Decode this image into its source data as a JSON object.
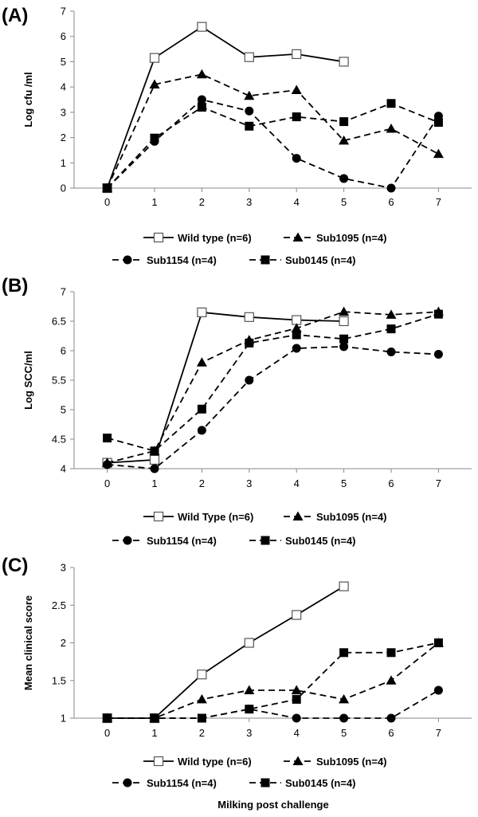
{
  "chart_data": [
    {
      "type": "line",
      "panel_label": "(A)",
      "ylabel": "Log cfu /ml",
      "xlabel": "",
      "x": [
        0,
        1,
        2,
        3,
        4,
        5,
        6,
        7
      ],
      "xlim": [
        -0.7,
        7.7
      ],
      "ylim": [
        0,
        7
      ],
      "yticks": [
        0,
        1,
        2,
        3,
        4,
        5,
        6,
        7
      ],
      "grid": false,
      "legend_position": "bottom",
      "series": [
        {
          "name": "Wild type (n=6)",
          "marker": "open-square",
          "line": "solid",
          "x": [
            0,
            1,
            2,
            3,
            4,
            5
          ],
          "values": [
            0,
            5.15,
            6.38,
            5.18,
            5.3,
            5.0
          ]
        },
        {
          "name": "Sub1095 (n=4)",
          "marker": "triangle",
          "line": "dashed",
          "x": [
            0,
            1,
            2,
            3,
            4,
            5,
            6,
            7
          ],
          "values": [
            0,
            4.1,
            4.5,
            3.65,
            3.88,
            1.88,
            2.35,
            1.35
          ]
        },
        {
          "name": "Sub1154 (n=4)",
          "marker": "circle",
          "line": "dashed",
          "x": [
            0,
            1,
            2,
            3,
            4,
            5,
            6,
            7
          ],
          "values": [
            0,
            1.85,
            3.5,
            3.05,
            1.18,
            0.38,
            0,
            2.85
          ]
        },
        {
          "name": "Sub0145 (n=4)",
          "marker": "square",
          "line": "dashed",
          "x": [
            0,
            1,
            2,
            3,
            4,
            5,
            6,
            7
          ],
          "values": [
            0,
            1.98,
            3.2,
            2.45,
            2.82,
            2.63,
            3.35,
            2.6
          ]
        }
      ]
    },
    {
      "type": "line",
      "panel_label": "(B)",
      "ylabel": "Log  SCC/ml",
      "xlabel": "",
      "x": [
        0,
        1,
        2,
        3,
        4,
        5,
        6,
        7
      ],
      "xlim": [
        -0.7,
        7.7
      ],
      "ylim": [
        4,
        7
      ],
      "yticks": [
        4,
        4.5,
        5,
        5.5,
        6,
        6.5,
        7
      ],
      "grid": false,
      "legend_position": "bottom",
      "series": [
        {
          "name": "Wild Type (n=6)",
          "marker": "open-square",
          "line": "solid",
          "x": [
            0,
            1,
            2,
            3,
            4,
            5
          ],
          "values": [
            4.1,
            4.15,
            6.65,
            6.57,
            6.52,
            6.5
          ]
        },
        {
          "name": "Sub1095 (n=4)",
          "marker": "triangle",
          "line": "dashed",
          "x": [
            0,
            1,
            2,
            3,
            4,
            5,
            6,
            7
          ],
          "values": [
            4.1,
            4.3,
            5.8,
            6.18,
            6.38,
            6.66,
            6.61,
            6.66
          ]
        },
        {
          "name": "Sub1154 (n=4)",
          "marker": "circle",
          "line": "dashed",
          "x": [
            0,
            1,
            2,
            3,
            4,
            5,
            6,
            7
          ],
          "values": [
            4.07,
            4.0,
            4.65,
            5.5,
            6.04,
            6.07,
            5.98,
            5.94
          ]
        },
        {
          "name": "Sub0145 (n=4)",
          "marker": "square",
          "line": "dashed",
          "x": [
            0,
            1,
            2,
            3,
            4,
            5,
            6,
            7
          ],
          "values": [
            4.52,
            4.3,
            5.01,
            6.13,
            6.27,
            6.2,
            6.37,
            6.62
          ]
        }
      ]
    },
    {
      "type": "line",
      "panel_label": "(C)",
      "ylabel": "Mean clinical score",
      "xlabel": "Milking post challenge",
      "x": [
        0,
        1,
        2,
        3,
        4,
        5,
        6,
        7
      ],
      "xlim": [
        -0.7,
        7.7
      ],
      "ylim": [
        1,
        3
      ],
      "yticks": [
        1,
        1.5,
        2,
        2.5,
        3
      ],
      "grid": false,
      "legend_position": "bottom",
      "series": [
        {
          "name": "Wild type (n=6)",
          "marker": "open-square",
          "line": "solid",
          "x": [
            0,
            1,
            2,
            3,
            4,
            5
          ],
          "values": [
            1,
            1,
            1.58,
            2.0,
            2.37,
            2.75
          ]
        },
        {
          "name": "Sub1095 (n=4)",
          "marker": "triangle",
          "line": "dashed",
          "x": [
            0,
            1,
            2,
            3,
            4,
            5,
            6,
            7
          ],
          "values": [
            1,
            1,
            1.25,
            1.37,
            1.37,
            1.25,
            1.5,
            2.0
          ]
        },
        {
          "name": "Sub1154 (n=4)",
          "marker": "circle",
          "line": "dashed",
          "x": [
            0,
            1,
            2,
            3,
            4,
            5,
            6,
            7
          ],
          "values": [
            1,
            1,
            1,
            1.12,
            1.0,
            1.0,
            1.0,
            1.37
          ]
        },
        {
          "name": "Sub0145 (n=4)",
          "marker": "square",
          "line": "dashed",
          "x": [
            0,
            1,
            2,
            3,
            4,
            5,
            6,
            7
          ],
          "values": [
            1,
            1,
            1,
            1.12,
            1.25,
            1.87,
            1.87,
            2.0
          ]
        }
      ]
    }
  ]
}
